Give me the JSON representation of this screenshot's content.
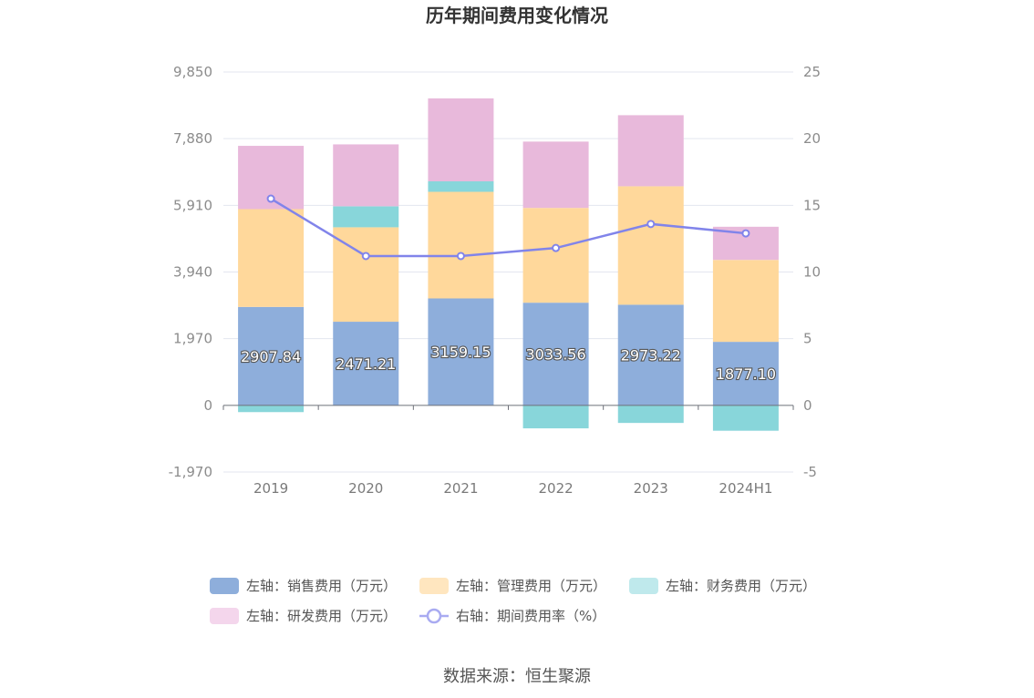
{
  "chart_data": {
    "type": "bar",
    "title": "历年期间费用变化情况",
    "categories": [
      "2019",
      "2020",
      "2021",
      "2022",
      "2023",
      "2024H1"
    ],
    "left_axis": {
      "ticks": [
        -1970,
        0,
        1970,
        3940,
        5910,
        7880,
        9850
      ],
      "tick_labels": [
        "-1,970",
        "0",
        "1,970",
        "3,940",
        "5,910",
        "7,880",
        "9,850"
      ],
      "ylim": [
        -1970,
        9850
      ]
    },
    "right_axis": {
      "ticks": [
        -5,
        0,
        5,
        10,
        15,
        20,
        25
      ],
      "tick_labels": [
        "-5",
        "0",
        "5",
        "10",
        "15",
        "20",
        "25"
      ],
      "ylim": [
        -5,
        25
      ]
    },
    "series": [
      {
        "name": "左轴：销售费用（万元）",
        "axis": "left",
        "kind": "bar",
        "color": "#8eaedb",
        "values": [
          2907.84,
          2471.21,
          3159.15,
          3033.56,
          2973.22,
          1877.1
        ],
        "labels": [
          "2907.84",
          "2471.21",
          "3159.15",
          "3033.56",
          "2973.22",
          "1877.10"
        ]
      },
      {
        "name": "左轴：管理费用（万元）",
        "axis": "left",
        "kind": "bar",
        "color": "#ffd89b",
        "values": [
          2890,
          2790,
          3150,
          2800,
          3500,
          2420
        ]
      },
      {
        "name": "左轴：财务费用（万元）",
        "axis": "left",
        "kind": "bar",
        "color": "#88d6da",
        "values": [
          -200,
          620,
          310,
          -680,
          -520,
          -750
        ]
      },
      {
        "name": "左轴：研发费用（万元）",
        "axis": "left",
        "kind": "bar",
        "color": "#e8b9db",
        "values": [
          1870,
          1830,
          2450,
          1960,
          2100,
          980
        ]
      },
      {
        "name": "右轴：期间费用率（%）",
        "axis": "right",
        "kind": "line",
        "color": "#8184ea",
        "values": [
          15.5,
          11.2,
          11.2,
          11.8,
          13.6,
          12.9
        ]
      }
    ],
    "legend": [
      {
        "label": "左轴：销售费用（万元）",
        "color": "#8eaedb",
        "kind": "bar"
      },
      {
        "label": "左轴：管理费用（万元）",
        "color": "#ffe6bf",
        "kind": "bar"
      },
      {
        "label": "左轴：财务费用（万元）",
        "color": "#bfe9ec",
        "kind": "bar"
      },
      {
        "label": "左轴：研发费用（万元）",
        "color": "#f4d6ec",
        "kind": "bar"
      },
      {
        "label": "右轴：期间费用率（%）",
        "color": "#a9abf1",
        "kind": "line"
      }
    ]
  },
  "source": "数据来源：恒生聚源"
}
